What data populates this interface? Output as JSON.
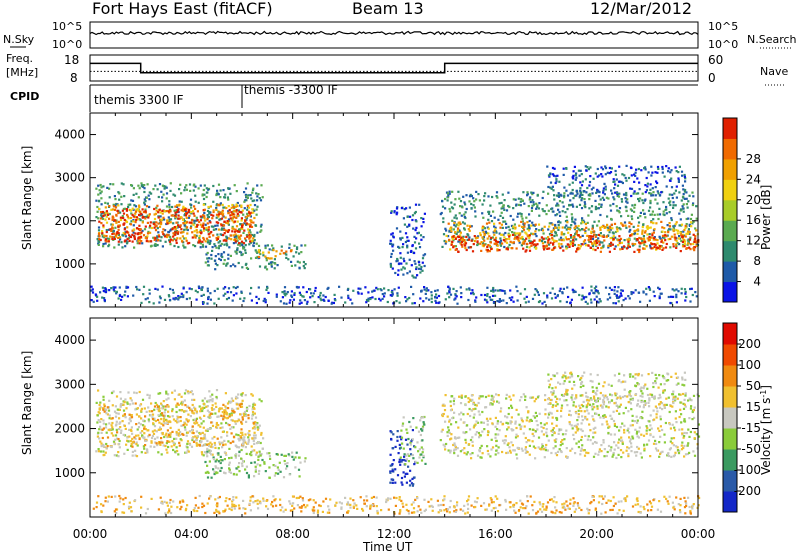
{
  "header": {
    "station": "Fort Hays East (fitACF)",
    "beam": "Beam 13",
    "date": "12/Mar/2012"
  },
  "noise_panel": {
    "left_label": "N.Sky",
    "right_label": "N.Search",
    "left_ticks": [
      "10^5",
      "10^0"
    ],
    "right_ticks": [
      "10^5",
      "10^0"
    ]
  },
  "freq_panel": {
    "left_label_line1": "Freq.",
    "left_label_line2": "[MHz]",
    "right_label": "Nave",
    "left_ticks": [
      "18",
      "8"
    ],
    "right_ticks": [
      "60",
      "0"
    ],
    "freq_mhz_steps": [
      {
        "t": 0.0,
        "v": 15.3
      },
      {
        "t": 2.0,
        "v": 15.3
      },
      {
        "t": 2.0,
        "v": 10.6
      },
      {
        "t": 14.0,
        "v": 10.6
      },
      {
        "t": 14.0,
        "v": 15.3
      },
      {
        "t": 24.0,
        "v": 15.3
      }
    ],
    "nave_level": 20
  },
  "cpid_panel": {
    "label": "CPID",
    "segments": [
      {
        "start_hour": 0,
        "label": "themis 3300 IF"
      },
      {
        "start_hour": 6,
        "label": "themis -3300 IF"
      }
    ]
  },
  "chart_data": [
    {
      "type": "heatmap",
      "name": "power",
      "ylabel": "Slant Range [km]",
      "xlabel": "Time UT",
      "xlim": [
        0,
        24
      ],
      "ylim": [
        0,
        4500
      ],
      "yticks": [
        "1000",
        "2000",
        "3000",
        "4000"
      ],
      "colorbar": {
        "label": "Power [dB]",
        "ticks": [
          "4",
          "8",
          "12",
          "16",
          "20",
          "24",
          "28"
        ],
        "colors": [
          "#0a14e6",
          "#1e5aa8",
          "#2e8a6e",
          "#5aaa50",
          "#a8cc28",
          "#f0d010",
          "#f0a000",
          "#f06a00",
          "#e02000"
        ]
      },
      "regions": [
        {
          "t0": 0.2,
          "t1": 6.8,
          "r0": 1400,
          "r1": 2900,
          "level": 2,
          "noise": 500
        },
        {
          "t0": 0.3,
          "t1": 6.5,
          "r0": 1550,
          "r1": 2400,
          "level": 6,
          "noise": 150
        },
        {
          "t0": 0.3,
          "t1": 6.3,
          "r0": 1500,
          "r1": 2300,
          "level": 8,
          "noise": 80
        },
        {
          "t0": 4.5,
          "t1": 8.5,
          "r0": 900,
          "r1": 1500,
          "level": 2,
          "noise": 200
        },
        {
          "t0": 6.5,
          "t1": 8.2,
          "r0": 1150,
          "r1": 1350,
          "level": 6,
          "noise": 50
        },
        {
          "t0": 11.8,
          "t1": 13.2,
          "r0": 700,
          "r1": 2400,
          "level": 1,
          "noise": 400
        },
        {
          "t0": 13.8,
          "t1": 24,
          "r0": 1400,
          "r1": 2700,
          "level": 2,
          "noise": 350
        },
        {
          "t0": 14.0,
          "t1": 24,
          "r0": 1350,
          "r1": 2000,
          "level": 6,
          "noise": 130
        },
        {
          "t0": 14.2,
          "t1": 24,
          "r0": 1300,
          "r1": 1700,
          "level": 8,
          "noise": 70
        },
        {
          "t0": 18.0,
          "t1": 23.5,
          "r0": 2600,
          "r1": 3300,
          "level": 1,
          "noise": 200
        },
        {
          "t0": 0,
          "t1": 24,
          "r0": 100,
          "r1": 500,
          "level": 1,
          "noise": 150
        }
      ]
    },
    {
      "type": "heatmap",
      "name": "velocity",
      "ylabel": "Slant Range [km]",
      "xlabel": "Time UT",
      "xlim": [
        0,
        24
      ],
      "ylim": [
        0,
        4500
      ],
      "yticks": [
        "1000",
        "2000",
        "3000",
        "4000"
      ],
      "xticks": [
        "00:00",
        "04:00",
        "08:00",
        "12:00",
        "16:00",
        "20:00",
        "00:00"
      ],
      "colorbar": {
        "label": "Velocity [m s^-1]",
        "ticks": [
          "200",
          "100",
          "50",
          "15",
          "-15",
          "-50",
          "-100",
          "-200"
        ],
        "colors": [
          "#1428c8",
          "#2a5aa8",
          "#3a9a60",
          "#8acc3a",
          "#c8c8c0",
          "#f0c030",
          "#f08a10",
          "#f04a00",
          "#e00a00"
        ]
      },
      "regions": [
        {
          "t0": 0.2,
          "t1": 6.8,
          "r0": 1400,
          "r1": 2900,
          "level": 4,
          "noise": 400
        },
        {
          "t0": 0.3,
          "t1": 6.5,
          "r0": 1600,
          "r1": 2600,
          "level": 5,
          "noise": 300
        },
        {
          "t0": 4.5,
          "t1": 8.5,
          "r0": 900,
          "r1": 1500,
          "level": 3,
          "noise": 150
        },
        {
          "t0": 11.8,
          "t1": 12.8,
          "r0": 700,
          "r1": 2000,
          "level": 0,
          "noise": 300
        },
        {
          "t0": 12.2,
          "t1": 13.2,
          "r0": 1200,
          "r1": 2300,
          "level": 3,
          "noise": 300
        },
        {
          "t0": 13.8,
          "t1": 24,
          "r0": 1350,
          "r1": 2800,
          "level": 4,
          "noise": 350
        },
        {
          "t0": 18.0,
          "t1": 23.5,
          "r0": 2500,
          "r1": 3300,
          "level": 4,
          "noise": 200
        },
        {
          "t0": 0,
          "t1": 24,
          "r0": 100,
          "r1": 500,
          "level": 5,
          "noise": 150
        }
      ]
    }
  ]
}
